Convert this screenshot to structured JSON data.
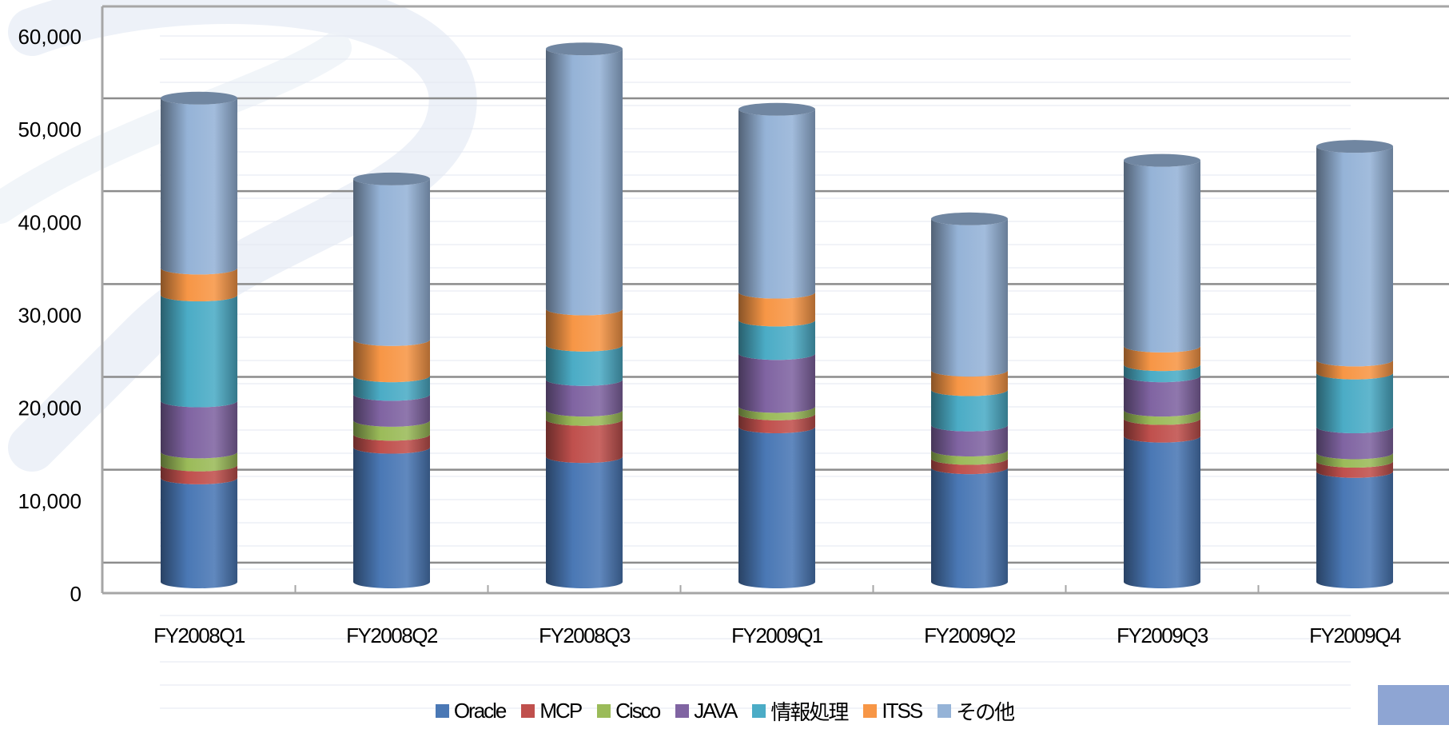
{
  "chart_data": {
    "type": "bar",
    "stacked": true,
    "style": "3d-cylinder",
    "title": "",
    "xlabel": "",
    "ylabel": "",
    "ylim": [
      0,
      60000
    ],
    "yticks": [
      0,
      10000,
      20000,
      30000,
      40000,
      50000,
      60000
    ],
    "ytick_labels": [
      "0",
      "10,000",
      "20,000",
      "30,000",
      "40,000",
      "50,000",
      "60,000"
    ],
    "grid": true,
    "legend_position": "bottom",
    "categories": [
      "FY2008Q1",
      "FY2008Q2",
      "FY2008Q3",
      "FY2009Q1",
      "FY2009Q2",
      "FY2009Q3",
      "FY2009Q4"
    ],
    "series": [
      {
        "name": "Oracle",
        "color": "#4a78b5",
        "values": [
          11200,
          14500,
          13500,
          16700,
          12300,
          15700,
          11900
        ]
      },
      {
        "name": "MCP",
        "color": "#c0504d",
        "values": [
          1400,
          1400,
          4000,
          1400,
          1000,
          1900,
          1100
        ]
      },
      {
        "name": "Cisco",
        "color": "#9bbb59",
        "values": [
          1400,
          1500,
          1000,
          800,
          900,
          900,
          900
        ]
      },
      {
        "name": "JAVA",
        "color": "#8064a2",
        "values": [
          5500,
          2800,
          3300,
          5700,
          2700,
          3700,
          2800
        ]
      },
      {
        "name": "情報処理",
        "color": "#4bacc6",
        "values": [
          11400,
          2000,
          3700,
          3600,
          3800,
          1200,
          5800
        ]
      },
      {
        "name": "ITSS",
        "color": "#f79646",
        "values": [
          2900,
          3900,
          3900,
          3000,
          2100,
          2000,
          1400
        ]
      },
      {
        "name": "その他",
        "color": "#95b3d7",
        "values": [
          18300,
          17300,
          28000,
          19700,
          16300,
          20000,
          23000
        ]
      }
    ]
  }
}
